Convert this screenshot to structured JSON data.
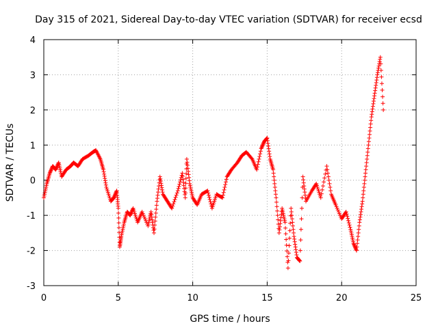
{
  "chart_data": {
    "type": "scatter",
    "title": "Day 315 of 2021, Sidereal Day-to-day VTEC variation (SDTVAR) for receiver ecsd",
    "xlabel": "GPS time / hours",
    "ylabel": "SDTVAR / TECUs",
    "xlim": [
      0,
      25
    ],
    "ylim": [
      -3,
      4
    ],
    "x_ticks": [
      "0",
      "5",
      "10",
      "15",
      "20",
      "25"
    ],
    "y_ticks": [
      "-3",
      "-2",
      "-1",
      "0",
      "1",
      "2",
      "3",
      "4"
    ],
    "grid": true,
    "marker": "+",
    "series": [
      {
        "name": "SDTVAR",
        "color": "#ff0000",
        "x": [
          0.0,
          0.2,
          0.4,
          0.6,
          0.8,
          1.0,
          1.2,
          1.5,
          1.8,
          2.0,
          2.3,
          2.6,
          3.0,
          3.3,
          3.5,
          3.8,
          4.0,
          4.2,
          4.5,
          4.7,
          4.9,
          5.0,
          5.1,
          5.2,
          5.4,
          5.6,
          5.8,
          6.0,
          6.3,
          6.6,
          7.0,
          7.2,
          7.4,
          7.6,
          7.8,
          8.0,
          8.3,
          8.6,
          9.0,
          9.3,
          9.5,
          9.6,
          9.8,
          10.0,
          10.3,
          10.6,
          11.0,
          11.3,
          11.6,
          12.0,
          12.3,
          12.6,
          13.0,
          13.3,
          13.6,
          14.0,
          14.3,
          14.6,
          14.8,
          15.0,
          15.2,
          15.4,
          15.6,
          15.8,
          16.0,
          16.2,
          16.4,
          16.6,
          16.8,
          17.0,
          17.2,
          17.4,
          17.6,
          18.0,
          18.3,
          18.6,
          19.0,
          19.3,
          19.6,
          20.0,
          20.3,
          20.6,
          20.8,
          21.0,
          21.2,
          21.4,
          21.6,
          21.8,
          22.0,
          22.2,
          22.4,
          22.6,
          22.8
        ],
        "y": [
          -0.5,
          -0.1,
          0.2,
          0.4,
          0.3,
          0.5,
          0.1,
          0.3,
          0.4,
          0.5,
          0.4,
          0.6,
          0.7,
          0.8,
          0.85,
          0.6,
          0.3,
          -0.2,
          -0.6,
          -0.5,
          -0.3,
          -0.8,
          -1.9,
          -1.6,
          -1.2,
          -0.9,
          -1.0,
          -0.8,
          -1.2,
          -0.9,
          -1.3,
          -0.9,
          -1.5,
          -0.6,
          0.1,
          -0.4,
          -0.6,
          -0.8,
          -0.3,
          0.2,
          -0.5,
          0.6,
          -0.1,
          -0.5,
          -0.7,
          -0.4,
          -0.3,
          -0.8,
          -0.4,
          -0.5,
          0.1,
          0.3,
          0.5,
          0.7,
          0.8,
          0.6,
          0.3,
          0.9,
          1.1,
          1.2,
          0.6,
          0.3,
          -0.5,
          -1.5,
          -0.8,
          -1.2,
          -2.5,
          -0.8,
          -1.6,
          -2.2,
          -2.3,
          0.1,
          -0.6,
          -0.3,
          -0.1,
          -0.5,
          0.4,
          -0.4,
          -0.7,
          -1.1,
          -0.9,
          -1.4,
          -1.8,
          -2.0,
          -1.2,
          -0.6,
          0.2,
          1.0,
          1.8,
          2.4,
          3.0,
          3.5,
          2.0
        ]
      }
    ]
  }
}
